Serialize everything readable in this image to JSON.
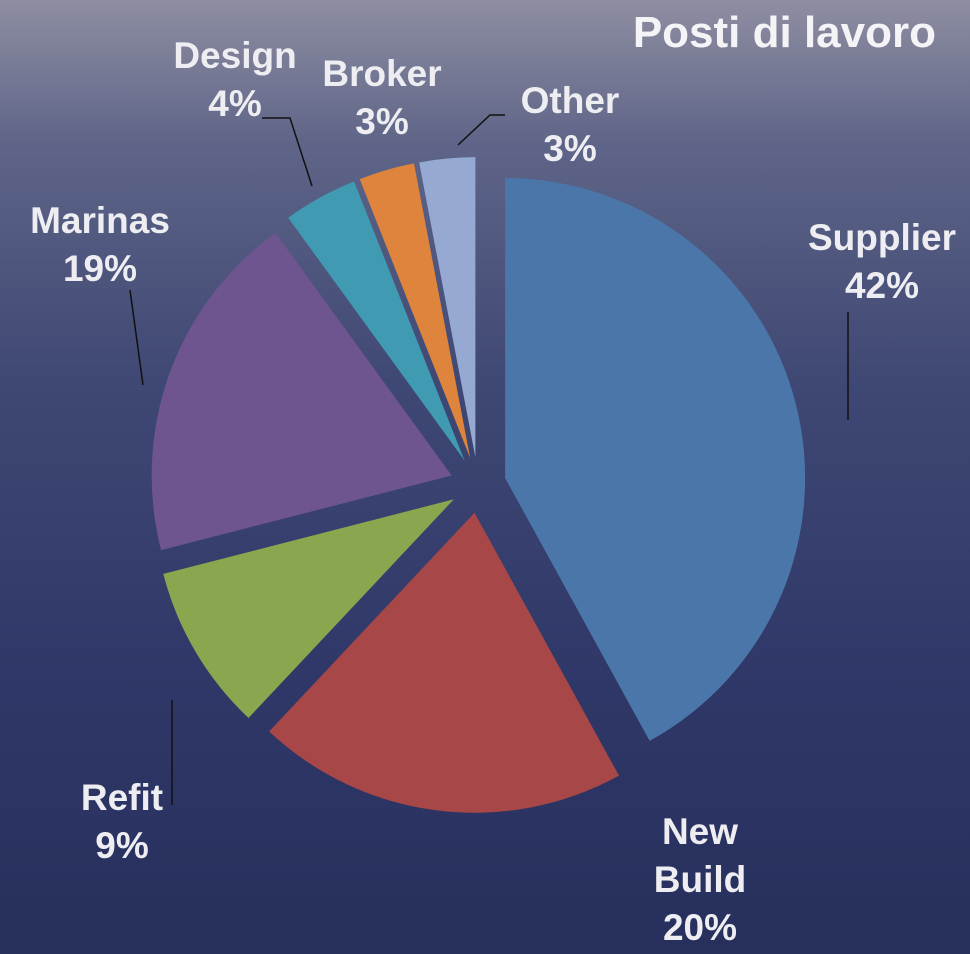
{
  "chart_data": {
    "type": "pie",
    "title": "Posti di lavoro",
    "categories": [
      "Supplier",
      "New Build",
      "Refit",
      "Marinas",
      "Design",
      "Broker",
      "Other"
    ],
    "values": [
      42,
      20,
      9,
      19,
      4,
      3,
      3
    ],
    "value_labels": [
      "42%",
      "20%",
      "9%",
      "19%",
      "4%",
      "3%",
      "3%"
    ],
    "colors": [
      "#4a76a9",
      "#a84747",
      "#8aa64f",
      "#6e5590",
      "#3f9ab2",
      "#df843d",
      "#95a9d3"
    ]
  }
}
